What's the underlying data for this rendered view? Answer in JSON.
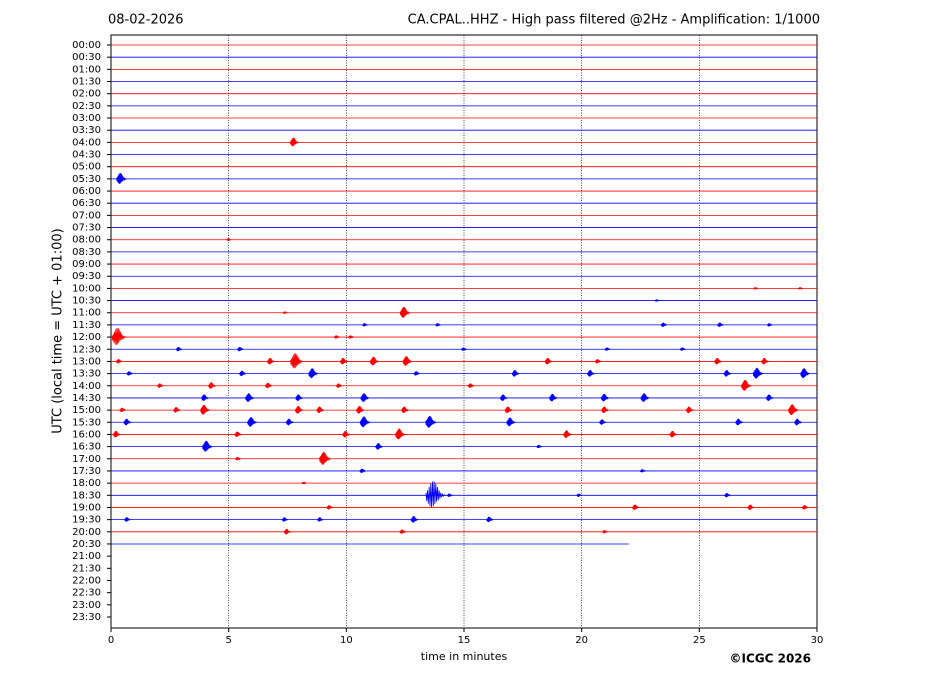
{
  "chart_data": {
    "type": "helicorder",
    "date": "08-02-2026",
    "title": "CA.CPAL..HHZ - High pass filtered @2Hz - Amplification: 1/1000",
    "ylabel": "UTC (local time = UTC + 01:00)",
    "xlabel": "time in minutes",
    "copyright": "©ICGC 2026",
    "xlim": [
      0,
      30
    ],
    "xticks": [
      0,
      5,
      10,
      15,
      20,
      25,
      30
    ],
    "grid": true,
    "colors": [
      "#ff0000",
      "#0000ff"
    ],
    "rows": [
      "00:00",
      "00:30",
      "01:00",
      "01:30",
      "02:00",
      "02:30",
      "03:00",
      "03:30",
      "04:00",
      "04:30",
      "05:00",
      "05:30",
      "06:00",
      "06:30",
      "07:00",
      "07:30",
      "08:00",
      "08:30",
      "09:00",
      "09:30",
      "10:00",
      "10:30",
      "11:00",
      "11:30",
      "12:00",
      "12:30",
      "13:00",
      "13:30",
      "14:00",
      "14:30",
      "15:00",
      "15:30",
      "16:00",
      "16:30",
      "17:00",
      "17:30",
      "18:00",
      "18:30",
      "19:00",
      "19:30",
      "20:00",
      "20:30",
      "21:00",
      "21:30",
      "22:00",
      "22:30",
      "23:00",
      "23:30"
    ],
    "traces": [
      {
        "end": 30,
        "events": []
      },
      {
        "end": 30,
        "events": []
      },
      {
        "end": 30,
        "events": []
      },
      {
        "end": 30,
        "events": []
      },
      {
        "end": 30,
        "events": []
      },
      {
        "end": 30,
        "events": []
      },
      {
        "end": 30,
        "events": []
      },
      {
        "end": 30,
        "events": []
      },
      {
        "end": 30,
        "events": [
          [
            7.8,
            0.4
          ]
        ]
      },
      {
        "end": 30,
        "events": []
      },
      {
        "end": 30,
        "events": []
      },
      {
        "end": 30,
        "events": [
          [
            0.45,
            0.5
          ]
        ]
      },
      {
        "end": 30,
        "events": []
      },
      {
        "end": 30,
        "events": []
      },
      {
        "end": 30,
        "events": []
      },
      {
        "end": 30,
        "events": []
      },
      {
        "end": 30,
        "events": [
          [
            5.0,
            0.1
          ]
        ]
      },
      {
        "end": 30,
        "events": []
      },
      {
        "end": 30,
        "events": []
      },
      {
        "end": 30,
        "events": []
      },
      {
        "end": 30,
        "events": [
          [
            27.4,
            0.1
          ],
          [
            29.3,
            0.1
          ]
        ]
      },
      {
        "end": 30,
        "events": [
          [
            23.2,
            0.1
          ]
        ]
      },
      {
        "end": 30,
        "events": [
          [
            7.4,
            0.1
          ],
          [
            12.5,
            0.5
          ]
        ]
      },
      {
        "end": 30,
        "events": [
          [
            10.8,
            0.15
          ],
          [
            13.9,
            0.15
          ],
          [
            23.5,
            0.2
          ],
          [
            25.9,
            0.2
          ],
          [
            28,
            0.15
          ]
        ]
      },
      {
        "end": 30,
        "events": [
          [
            0.35,
            0.8
          ],
          [
            9.6,
            0.15
          ],
          [
            10.2,
            0.15
          ]
        ]
      },
      {
        "end": 30,
        "events": [
          [
            2.9,
            0.2
          ],
          [
            5.5,
            0.2
          ],
          [
            15,
            0.15
          ],
          [
            21.1,
            0.15
          ],
          [
            24.3,
            0.15
          ]
        ]
      },
      {
        "end": 30,
        "events": [
          [
            0.35,
            0.2
          ],
          [
            6.8,
            0.3
          ],
          [
            7.9,
            0.7
          ],
          [
            9.9,
            0.3
          ],
          [
            11.2,
            0.4
          ],
          [
            12.6,
            0.45
          ],
          [
            18.6,
            0.3
          ],
          [
            20.7,
            0.2
          ],
          [
            25.8,
            0.3
          ],
          [
            27.8,
            0.3
          ]
        ]
      },
      {
        "end": 30,
        "events": [
          [
            0.8,
            0.2
          ],
          [
            5.6,
            0.25
          ],
          [
            8.6,
            0.45
          ],
          [
            13,
            0.2
          ],
          [
            17.2,
            0.3
          ],
          [
            20.4,
            0.3
          ],
          [
            26.2,
            0.3
          ],
          [
            27.5,
            0.5
          ],
          [
            29.5,
            0.45
          ]
        ]
      },
      {
        "end": 30,
        "events": [
          [
            2.1,
            0.2
          ],
          [
            4.3,
            0.3
          ],
          [
            6.7,
            0.25
          ],
          [
            9.7,
            0.2
          ],
          [
            15.3,
            0.2
          ],
          [
            27,
            0.5
          ]
        ]
      },
      {
        "end": 30,
        "events": [
          [
            4,
            0.3
          ],
          [
            5.9,
            0.4
          ],
          [
            8,
            0.3
          ],
          [
            10.8,
            0.4
          ],
          [
            16.7,
            0.3
          ],
          [
            18.8,
            0.35
          ],
          [
            21,
            0.35
          ],
          [
            22.7,
            0.4
          ],
          [
            28,
            0.3
          ]
        ]
      },
      {
        "end": 30,
        "events": [
          [
            0.5,
            0.2
          ],
          [
            2.8,
            0.25
          ],
          [
            4,
            0.45
          ],
          [
            8,
            0.35
          ],
          [
            8.9,
            0.3
          ],
          [
            10.6,
            0.35
          ],
          [
            12.5,
            0.3
          ],
          [
            16.9,
            0.3
          ],
          [
            21,
            0.3
          ],
          [
            24.6,
            0.3
          ],
          [
            29,
            0.5
          ]
        ]
      },
      {
        "end": 30,
        "events": [
          [
            0.7,
            0.3
          ],
          [
            6,
            0.45
          ],
          [
            7.6,
            0.3
          ],
          [
            10.8,
            0.5
          ],
          [
            13.6,
            0.55
          ],
          [
            17,
            0.4
          ],
          [
            20.9,
            0.25
          ],
          [
            26.7,
            0.3
          ],
          [
            29.2,
            0.3
          ]
        ]
      },
      {
        "end": 30,
        "events": [
          [
            0.25,
            0.3
          ],
          [
            5.4,
            0.25
          ],
          [
            10,
            0.3
          ],
          [
            12.3,
            0.5
          ],
          [
            19.4,
            0.35
          ],
          [
            23.9,
            0.3
          ]
        ]
      },
      {
        "end": 30,
        "events": [
          [
            4.1,
            0.5
          ],
          [
            11.4,
            0.3
          ],
          [
            18.2,
            0.15
          ]
        ]
      },
      {
        "end": 30,
        "events": [
          [
            5.4,
            0.15
          ],
          [
            9.1,
            0.6
          ]
        ]
      },
      {
        "end": 30,
        "events": [
          [
            10.7,
            0.2
          ],
          [
            22.6,
            0.15
          ]
        ]
      },
      {
        "end": 30,
        "events": [
          [
            8.2,
            0.1
          ]
        ]
      },
      {
        "end": 30,
        "events": [
          [
            13.8,
            1.2
          ],
          [
            14.4,
            0.15
          ],
          [
            19.9,
            0.15
          ],
          [
            26.2,
            0.2
          ]
        ]
      },
      {
        "end": 30,
        "events": [
          [
            9.3,
            0.2
          ],
          [
            22.3,
            0.25
          ],
          [
            27.2,
            0.25
          ],
          [
            29.5,
            0.2
          ]
        ]
      },
      {
        "end": 30,
        "events": [
          [
            0.7,
            0.2
          ],
          [
            7.4,
            0.2
          ],
          [
            8.9,
            0.2
          ],
          [
            12.9,
            0.3
          ],
          [
            16.1,
            0.25
          ]
        ]
      },
      {
        "end": 30,
        "events": [
          [
            7.5,
            0.25
          ],
          [
            12.4,
            0.2
          ],
          [
            21,
            0.15
          ]
        ]
      },
      {
        "end": 22,
        "events": []
      }
    ]
  }
}
